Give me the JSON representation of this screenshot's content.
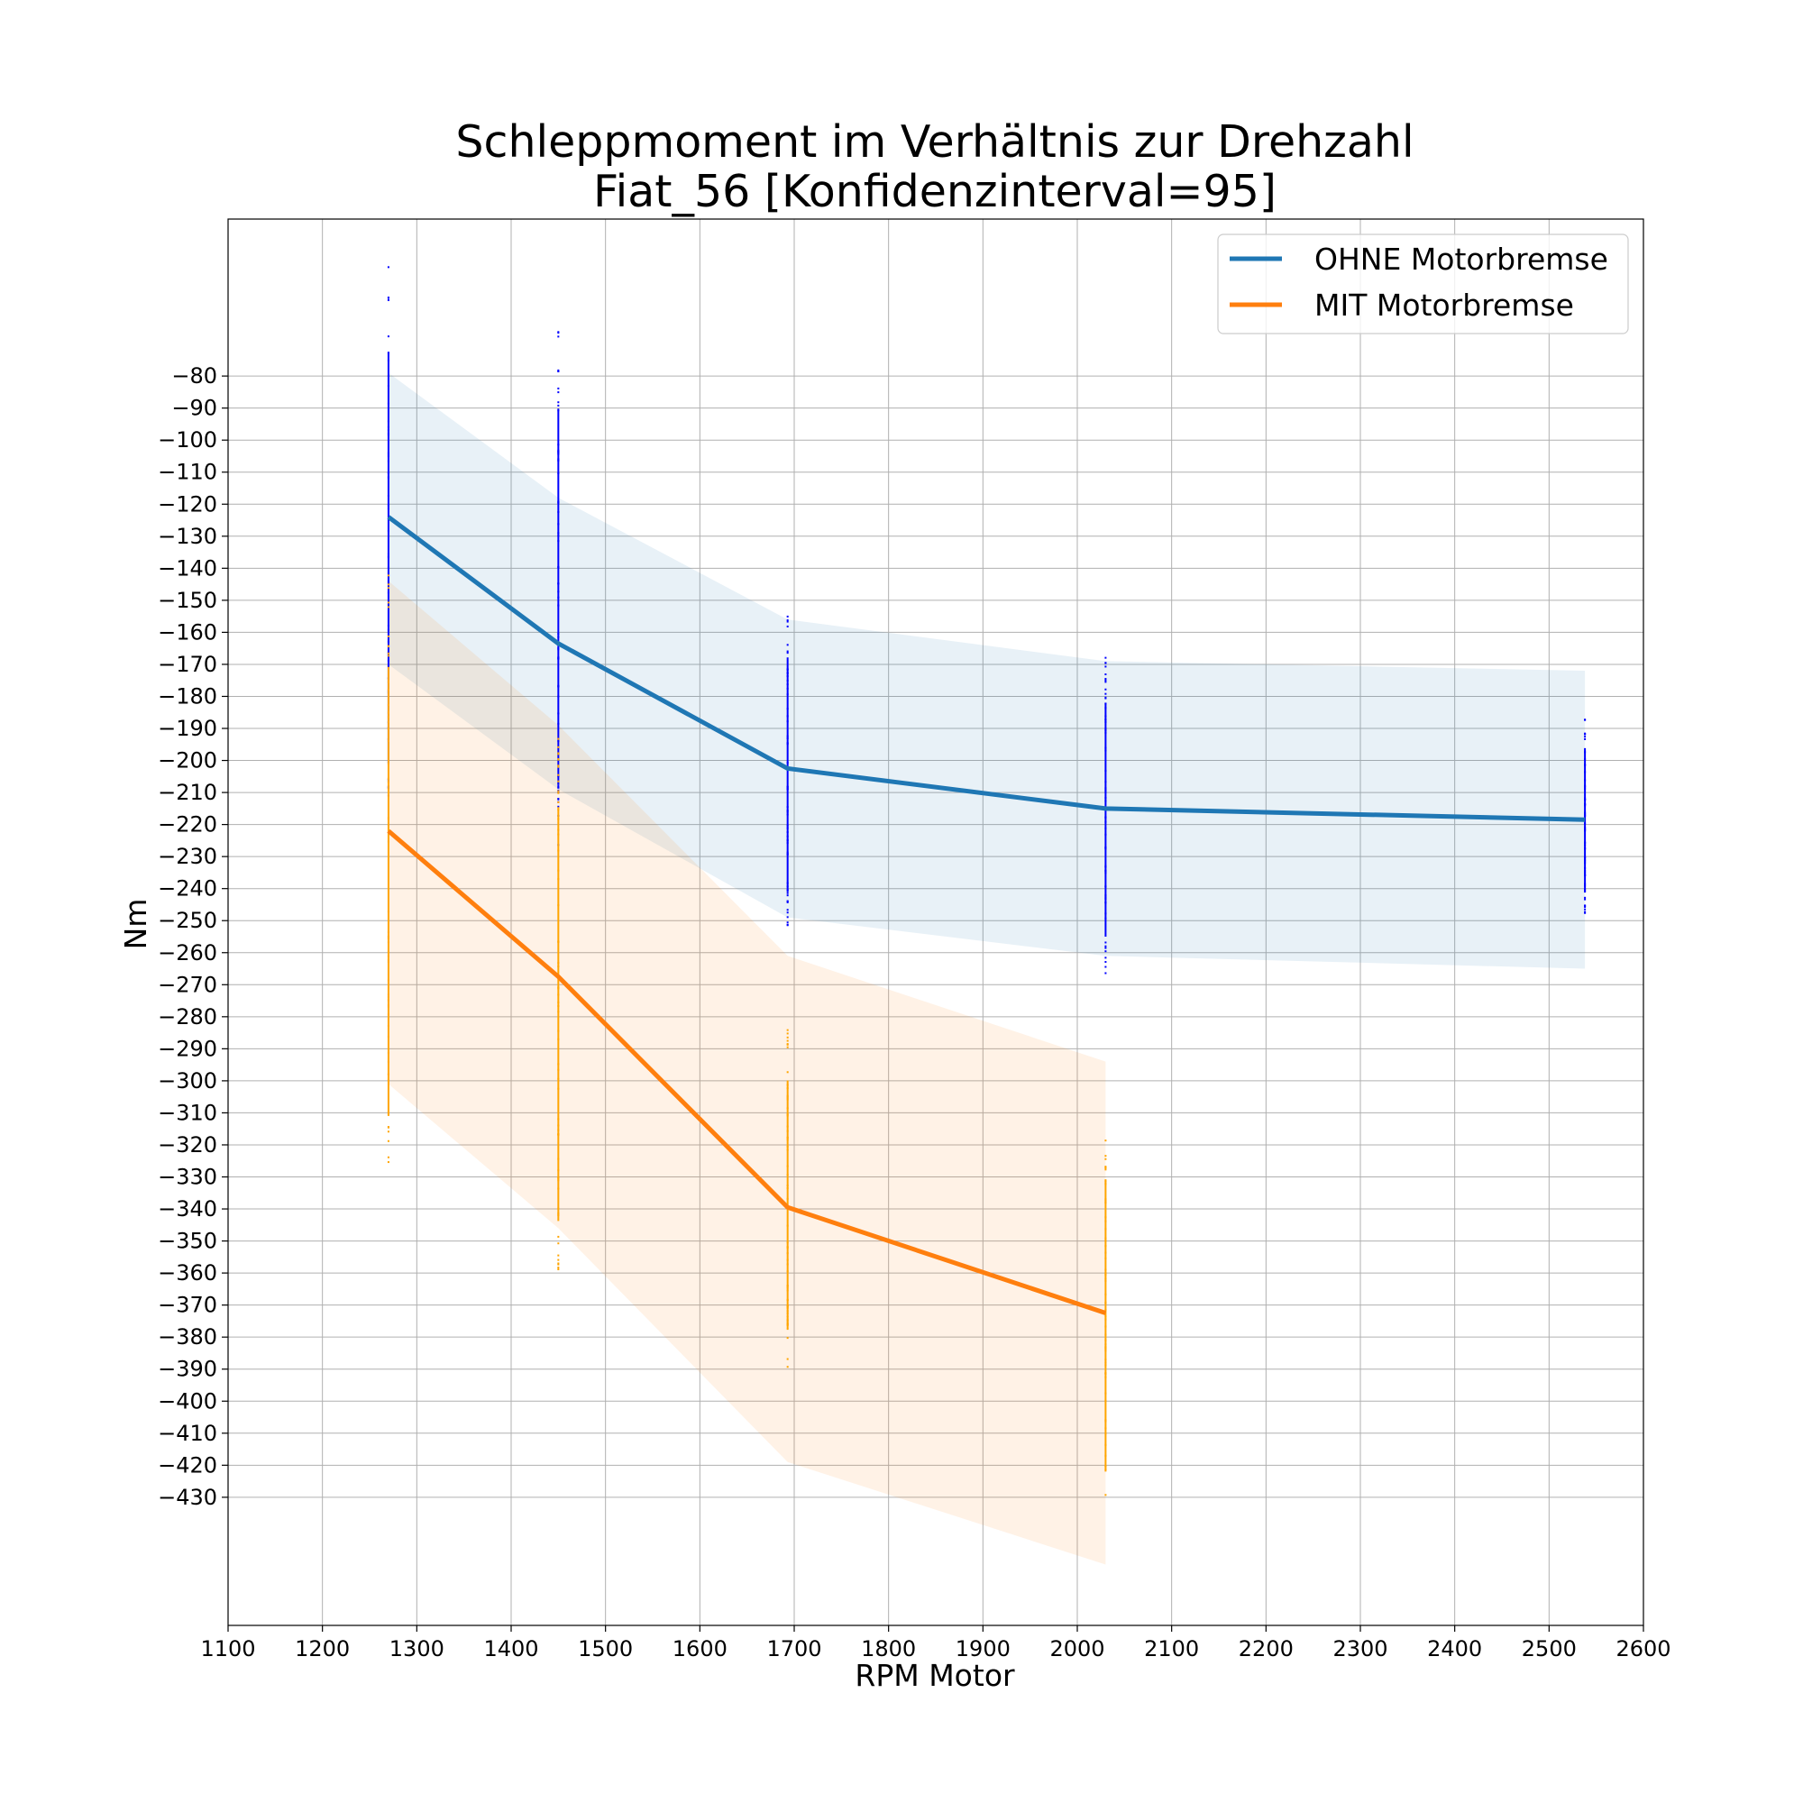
{
  "chart_data": {
    "type": "line",
    "title": "Schleppmoment im Verhältnis zur Drehzahl",
    "subtitle": "Fiat_56 [Konfidenzinterval=95]",
    "xlabel": "RPM Motor",
    "ylabel": "Nm",
    "xlim": [
      1100,
      2600
    ],
    "ylim": [
      -470,
      -31
    ],
    "xticks": [
      1100,
      1200,
      1300,
      1400,
      1500,
      1600,
      1700,
      1800,
      1900,
      2000,
      2100,
      2200,
      2300,
      2400,
      2500,
      2600
    ],
    "yticks": [
      -80,
      -90,
      -100,
      -110,
      -120,
      -130,
      -140,
      -150,
      -160,
      -170,
      -180,
      -190,
      -200,
      -210,
      -220,
      -230,
      -240,
      -250,
      -260,
      -270,
      -280,
      -290,
      -300,
      -310,
      -320,
      -330,
      -340,
      -350,
      -360,
      -370,
      -380,
      -390,
      -400,
      -410,
      -420,
      -430
    ],
    "grid": true,
    "legend_position": "top-right",
    "series": [
      {
        "name": "OHNE Motorbremse",
        "color": "#1f77b4",
        "band_color": "#1f77b4",
        "point_color": "#0000ff",
        "x": [
          1270,
          1450,
          1693,
          2030,
          2538
        ],
        "y": [
          -124,
          -163.5,
          -202.5,
          -215,
          -218.5
        ],
        "ci_upper": [
          -79,
          -118,
          -156,
          -169,
          -172
        ],
        "ci_lower": [
          -170,
          -209,
          -249,
          -261,
          -265
        ],
        "points_range": [
          [
            -46,
            -222
          ],
          [
            -66,
            -227
          ],
          [
            -153,
            -252
          ],
          [
            -167,
            -267
          ],
          [
            -187,
            -248
          ]
        ]
      },
      {
        "name": "MIT Motorbremse",
        "color": "#ff7f0e",
        "band_color": "#ff7f0e",
        "point_color": "#ffa500",
        "x": [
          1270,
          1450,
          1693,
          2030
        ],
        "y": [
          -222,
          -267.5,
          -339.5,
          -372.5
        ],
        "ci_upper": [
          -144,
          -189,
          -261,
          -294
        ],
        "ci_lower": [
          -301,
          -346,
          -419,
          -451
        ],
        "points_range": [
          [
            -142,
            -334
          ],
          [
            -188,
            -365
          ],
          [
            -284,
            -390
          ],
          [
            -312,
            -437
          ]
        ]
      }
    ]
  }
}
